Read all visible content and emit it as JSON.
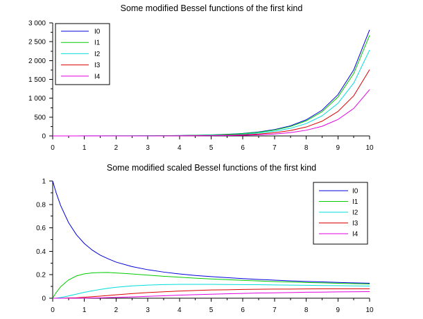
{
  "page": {
    "background": "#ffffff",
    "axis_color": "#000000",
    "text_color": "#000000"
  },
  "chart_data": [
    {
      "type": "line",
      "title": "Some modified Bessel functions of the first kind",
      "xlabel": "",
      "ylabel": "",
      "xlim": [
        0,
        10
      ],
      "ylim": [
        0,
        3000
      ],
      "grid": false,
      "x_ticks": {
        "values": [
          0,
          1,
          2,
          3,
          4,
          5,
          6,
          7,
          8,
          9,
          10
        ],
        "labels": [
          "0",
          "1",
          "2",
          "3",
          "4",
          "5",
          "6",
          "7",
          "8",
          "9",
          "10"
        ],
        "minor_step": 0.5
      },
      "y_ticks": {
        "values": [
          0,
          500,
          1000,
          1500,
          2000,
          2500,
          3000
        ],
        "labels": [
          "0",
          "500",
          "1 000",
          "1 500",
          "2 000",
          "2 500",
          "3 000"
        ],
        "minor_step": 250
      },
      "legend": {
        "position": "upper-left",
        "entries": [
          "I0",
          "I1",
          "I2",
          "I3",
          "I4"
        ]
      },
      "x": [
        0,
        0.1,
        0.25,
        0.5,
        0.75,
        1,
        1.25,
        1.5,
        1.75,
        2,
        2.5,
        3,
        3.5,
        4,
        4.5,
        5,
        5.5,
        6,
        6.5,
        7,
        7.5,
        8,
        8.5,
        9,
        9.5,
        10
      ],
      "series": [
        {
          "name": "I0",
          "color": "#0000dc",
          "values": [
            1,
            1.003,
            1.016,
            1.064,
            1.146,
            1.266,
            1.431,
            1.647,
            1.935,
            2.28,
            3.29,
            4.881,
            7.378,
            11.3,
            17.48,
            27.24,
            42.69,
            67.23,
            106.3,
            168.6,
            268.2,
            427.6,
            683.2,
            1093.6,
            1753.5,
            2815.7
          ]
        },
        {
          "name": "I1",
          "color": "#00cc00",
          "values": [
            0,
            0.05,
            0.126,
            0.258,
            0.402,
            0.565,
            0.752,
            0.982,
            1.265,
            1.591,
            2.517,
            3.953,
            6.206,
            9.759,
            15.39,
            24.34,
            38.59,
            61.34,
            97.74,
            156.0,
            249.6,
            399.9,
            641.6,
            1030.9,
            1658.5,
            2671.0
          ]
        },
        {
          "name": "I2",
          "color": "#00dcdc",
          "values": [
            0,
            0.001,
            0.008,
            0.032,
            0.074,
            0.136,
            0.219,
            0.338,
            0.487,
            0.689,
            1.276,
            2.245,
            3.832,
            6.422,
            10.64,
            17.51,
            28.62,
            46.79,
            76.18,
            124.0,
            201.6,
            327.6,
            532.2,
            864.5,
            1404.4,
            2281.5
          ]
        },
        {
          "name": "I3",
          "color": "#dc0000",
          "values": [
            0,
            0,
            0.0003,
            0.003,
            0.009,
            0.022,
            0.044,
            0.081,
            0.133,
            0.213,
            0.474,
            0.96,
            1.826,
            3.337,
            5.93,
            10.33,
            17.65,
            30.15,
            50.68,
            85.18,
            141.8,
            236.1,
            390.7,
            646.7,
            1066.4,
            1758.4
          ]
        },
        {
          "name": "I4",
          "color": "#e000e0",
          "values": [
            0,
            0,
            0,
            0.0002,
            0.001,
            0.003,
            0.006,
            0.015,
            0.027,
            0.051,
            0.138,
            0.326,
            0.69,
            1.416,
            2.69,
            5.102,
            9.19,
            16.54,
            29.03,
            50.95,
            87.6,
            150.5,
            255.9,
            434.9,
            730.4,
            1226.5
          ]
        }
      ]
    },
    {
      "type": "line",
      "title": "Some modified scaled Bessel functions of the first kind",
      "xlabel": "",
      "ylabel": "",
      "xlim": [
        0,
        10
      ],
      "ylim": [
        0,
        1
      ],
      "grid": false,
      "x_ticks": {
        "values": [
          0,
          1,
          2,
          3,
          4,
          5,
          6,
          7,
          8,
          9,
          10
        ],
        "labels": [
          "0",
          "1",
          "2",
          "3",
          "4",
          "5",
          "6",
          "7",
          "8",
          "9",
          "10"
        ],
        "minor_step": 0.5
      },
      "y_ticks": {
        "values": [
          0,
          0.2,
          0.4,
          0.6,
          0.8,
          1
        ],
        "labels": [
          "0",
          "0.2",
          "0.4",
          "0.6",
          "0.8",
          "1"
        ],
        "minor_step": 0.1
      },
      "legend": {
        "position": "upper-right",
        "entries": [
          "I0",
          "I1",
          "I2",
          "I3",
          "I4"
        ]
      },
      "x": [
        0,
        0.1,
        0.25,
        0.5,
        0.75,
        1,
        1.25,
        1.5,
        1.75,
        2,
        2.5,
        3,
        3.5,
        4,
        4.5,
        5,
        5.5,
        6,
        6.5,
        7,
        7.5,
        8,
        8.5,
        9,
        9.5,
        10
      ],
      "series": [
        {
          "name": "I0",
          "color": "#0000dc",
          "values": [
            1,
            0.907,
            0.791,
            0.645,
            0.541,
            0.466,
            0.41,
            0.367,
            0.336,
            0.308,
            0.27,
            0.243,
            0.223,
            0.207,
            0.194,
            0.184,
            0.175,
            0.167,
            0.16,
            0.154,
            0.148,
            0.143,
            0.139,
            0.135,
            0.131,
            0.128
          ]
        },
        {
          "name": "I1",
          "color": "#00cc00",
          "values": [
            0,
            0.045,
            0.098,
            0.156,
            0.19,
            0.208,
            0.216,
            0.219,
            0.22,
            0.215,
            0.207,
            0.197,
            0.187,
            0.179,
            0.171,
            0.164,
            0.158,
            0.152,
            0.147,
            0.142,
            0.138,
            0.134,
            0.131,
            0.127,
            0.124,
            0.121
          ]
        },
        {
          "name": "I2",
          "color": "#00dcdc",
          "values": [
            0,
            0.001,
            0.006,
            0.019,
            0.035,
            0.05,
            0.063,
            0.075,
            0.085,
            0.093,
            0.105,
            0.112,
            0.116,
            0.118,
            0.118,
            0.118,
            0.117,
            0.116,
            0.115,
            0.113,
            0.112,
            0.11,
            0.108,
            0.107,
            0.105,
            0.104
          ]
        },
        {
          "name": "I3",
          "color": "#dc0000",
          "values": [
            0,
            0,
            0.0002,
            0.002,
            0.004,
            0.008,
            0.013,
            0.018,
            0.023,
            0.029,
            0.039,
            0.048,
            0.055,
            0.061,
            0.066,
            0.07,
            0.072,
            0.075,
            0.076,
            0.078,
            0.078,
            0.079,
            0.08,
            0.08,
            0.08,
            0.08
          ]
        },
        {
          "name": "I4",
          "color": "#e000e0",
          "values": [
            0,
            0,
            0,
            0.0001,
            0.0004,
            0.001,
            0.002,
            0.003,
            0.005,
            0.007,
            0.011,
            0.016,
            0.021,
            0.026,
            0.03,
            0.034,
            0.038,
            0.041,
            0.044,
            0.046,
            0.048,
            0.051,
            0.052,
            0.054,
            0.055,
            0.056
          ]
        }
      ]
    }
  ]
}
